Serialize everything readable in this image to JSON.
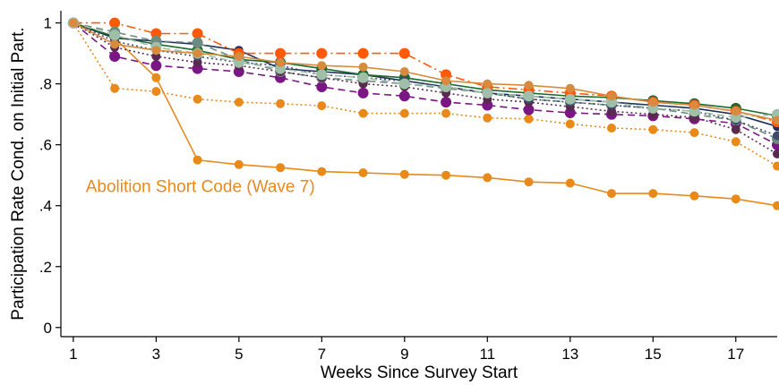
{
  "chart_data": {
    "type": "line",
    "xlabel": "Weeks Since Survey Start",
    "ylabel": "Participation Rate Cond. on Initial Part.",
    "xlim": [
      0.7,
      18
    ],
    "ylim": [
      -0.03,
      1.04
    ],
    "x_ticks": [
      1,
      3,
      5,
      7,
      9,
      11,
      13,
      15,
      17
    ],
    "y_ticks": [
      0,
      0.2,
      0.4,
      0.6,
      0.8,
      1
    ],
    "y_tick_labels": [
      "0",
      ".2",
      ".4",
      ".6",
      ".8",
      "1"
    ],
    "grid": false,
    "legend": "none",
    "annotation": {
      "text": "Abolition Short Code (Wave 7)",
      "x": 1.3,
      "y": 0.445,
      "color": "#E8891A"
    },
    "series": [
      {
        "color": "#E8891A",
        "dash": "solid",
        "marker_size": 5,
        "x": [
          1,
          2,
          3,
          4,
          5,
          6,
          7,
          8,
          9,
          10,
          11,
          12,
          13,
          14,
          15,
          16,
          17,
          18
        ],
        "values": [
          1.0,
          0.95,
          0.82,
          0.55,
          0.535,
          0.525,
          0.512,
          0.508,
          0.503,
          0.5,
          0.492,
          0.478,
          0.474,
          0.44,
          0.44,
          0.432,
          0.422,
          0.4
        ]
      },
      {
        "color": "#E8891A",
        "dash": "dotted",
        "marker_size": 5,
        "x": [
          1,
          2,
          3,
          4,
          5,
          6,
          7,
          8,
          9,
          10,
          11,
          12,
          13,
          14,
          15,
          16,
          17,
          18
        ],
        "values": [
          1.0,
          0.785,
          0.775,
          0.75,
          0.74,
          0.735,
          0.728,
          0.703,
          0.703,
          0.703,
          0.688,
          0.685,
          0.668,
          0.655,
          0.65,
          0.64,
          0.61,
          0.53
        ]
      },
      {
        "color": "#7B1685",
        "dash": "dashed",
        "marker_size": 6,
        "x": [
          1,
          2,
          3,
          4,
          5,
          6,
          7,
          8,
          9,
          10,
          11,
          12,
          13,
          14,
          15,
          16,
          17,
          18
        ],
        "values": [
          1.0,
          0.89,
          0.86,
          0.85,
          0.84,
          0.82,
          0.79,
          0.77,
          0.76,
          0.74,
          0.73,
          0.715,
          0.705,
          0.7,
          0.695,
          0.685,
          0.67,
          0.6
        ]
      },
      {
        "color": "#1F2F5A",
        "dash": "solid",
        "marker_size": 5,
        "x": [
          1,
          2,
          3,
          4,
          5,
          6,
          7,
          8,
          9,
          10,
          11,
          12,
          13,
          14,
          15,
          16,
          17,
          18
        ],
        "values": [
          1.0,
          0.95,
          0.94,
          0.93,
          0.91,
          0.85,
          0.84,
          0.83,
          0.81,
          0.79,
          0.77,
          0.76,
          0.75,
          0.74,
          0.73,
          0.72,
          0.7,
          0.66
        ]
      },
      {
        "color": "#1B6B2E",
        "dash": "solid",
        "marker_size": 6,
        "x": [
          1,
          2,
          3,
          4,
          5,
          6,
          7,
          8,
          9,
          10,
          11,
          12,
          13,
          14,
          15,
          16,
          17,
          18
        ],
        "values": [
          1.0,
          0.955,
          0.93,
          0.91,
          0.88,
          0.87,
          0.85,
          0.83,
          0.82,
          0.8,
          0.78,
          0.77,
          0.76,
          0.755,
          0.745,
          0.735,
          0.72,
          0.695
        ]
      },
      {
        "color": "#FF5A0A",
        "dash": "dashdot",
        "marker_size": 6,
        "x": [
          1,
          2,
          3,
          4,
          5,
          6,
          7,
          8,
          9,
          10,
          11,
          12,
          13,
          14,
          15,
          16,
          17,
          18
        ],
        "values": [
          1.0,
          1.0,
          0.965,
          0.965,
          0.9,
          0.9,
          0.9,
          0.9,
          0.9,
          0.83,
          0.79,
          0.78,
          0.77,
          0.76,
          0.74,
          0.73,
          0.71,
          0.675
        ]
      },
      {
        "color": "#6E8B80",
        "dash": "dashed",
        "marker_size": 6,
        "x": [
          1,
          2,
          3,
          4,
          5,
          6,
          7,
          8,
          9,
          10,
          11,
          12,
          13,
          14,
          15,
          16,
          17,
          18
        ],
        "values": [
          1.0,
          0.97,
          0.94,
          0.935,
          0.88,
          0.84,
          0.82,
          0.81,
          0.8,
          0.785,
          0.77,
          0.75,
          0.74,
          0.73,
          0.72,
          0.7,
          0.68,
          0.62
        ]
      },
      {
        "color": "#5A2A4E",
        "dash": "dotted",
        "marker_size": 5,
        "x": [
          1,
          2,
          3,
          4,
          5,
          6,
          7,
          8,
          9,
          10,
          11,
          12,
          13,
          14,
          15,
          16,
          17,
          18
        ],
        "values": [
          1.0,
          0.92,
          0.89,
          0.87,
          0.86,
          0.84,
          0.82,
          0.8,
          0.79,
          0.77,
          0.75,
          0.74,
          0.725,
          0.71,
          0.7,
          0.69,
          0.65,
          0.57
        ]
      },
      {
        "color": "#3F4A6B",
        "dash": "dotted",
        "marker_size": 5,
        "x": [
          1,
          2,
          3,
          4,
          5,
          6,
          7,
          8,
          9,
          10,
          11,
          12,
          13,
          14,
          15,
          16,
          17,
          18
        ],
        "values": [
          1.0,
          0.94,
          0.91,
          0.89,
          0.87,
          0.86,
          0.83,
          0.82,
          0.81,
          0.79,
          0.77,
          0.75,
          0.74,
          0.73,
          0.72,
          0.71,
          0.68,
          0.63
        ]
      },
      {
        "color": "#A0BFA8",
        "dash": "dashed",
        "marker_size": 6,
        "x": [
          1,
          2,
          3,
          4,
          5,
          6,
          7,
          8,
          9,
          10,
          11,
          12,
          13,
          14,
          15,
          16,
          17,
          18
        ],
        "values": [
          1.0,
          0.96,
          0.92,
          0.9,
          0.87,
          0.85,
          0.83,
          0.82,
          0.8,
          0.79,
          0.77,
          0.76,
          0.75,
          0.74,
          0.72,
          0.71,
          0.69,
          0.7
        ]
      },
      {
        "color": "#D88A3E",
        "dash": "solid",
        "marker_size": 5,
        "x": [
          1,
          2,
          3,
          4,
          5,
          6,
          7,
          8,
          9,
          10,
          11,
          12,
          13,
          14,
          15,
          16,
          17,
          18
        ],
        "values": [
          1.0,
          0.93,
          0.91,
          0.9,
          0.89,
          0.87,
          0.86,
          0.855,
          0.84,
          0.81,
          0.8,
          0.795,
          0.785,
          0.76,
          0.74,
          0.73,
          0.71,
          0.68
        ]
      }
    ]
  }
}
